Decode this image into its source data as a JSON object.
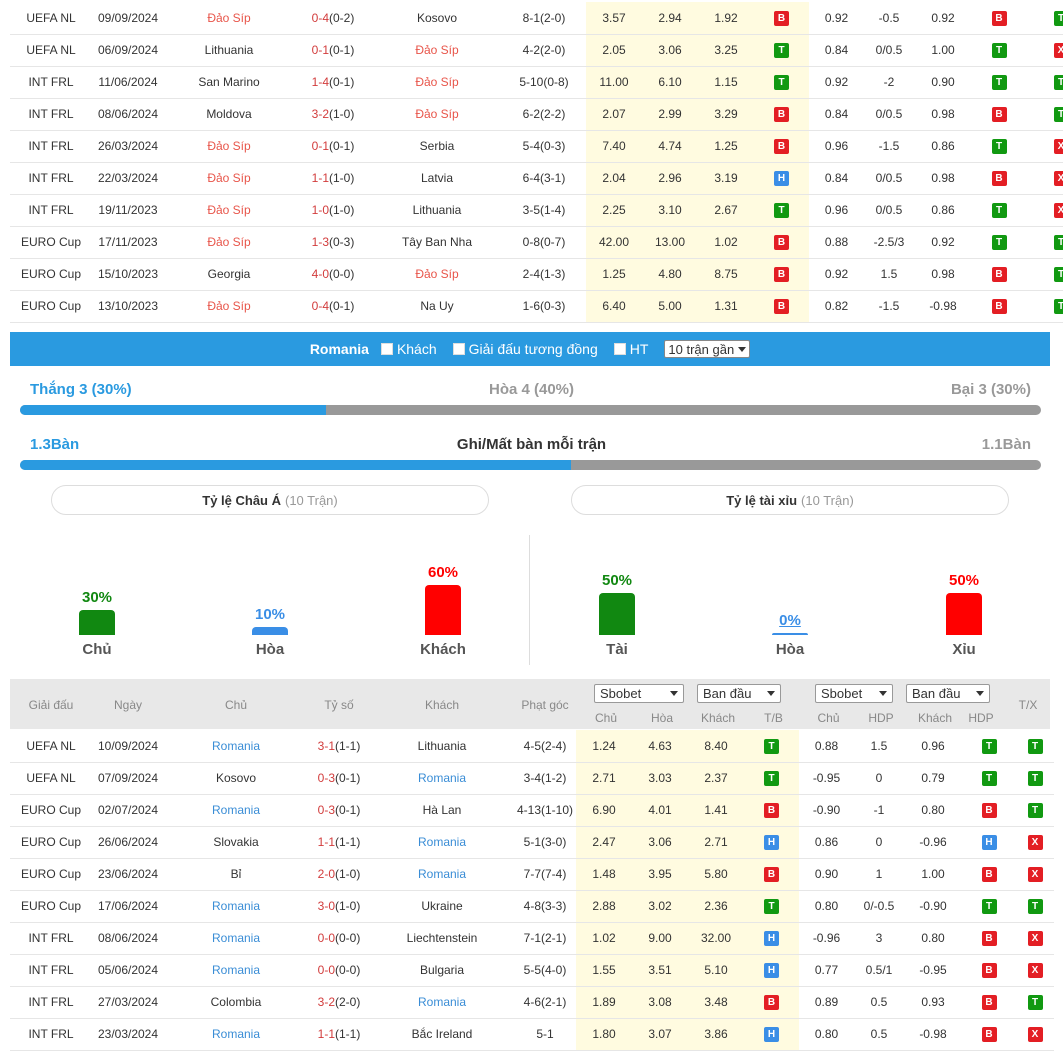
{
  "top_rows": [
    {
      "league": "UEFA NL",
      "date": "09/09/2024",
      "home": "Đảo Síp",
      "home_c": "red",
      "score": "0-4",
      "ht": "(0-2)",
      "away": "Kosovo",
      "away_c": "",
      "corner": "8-1(2-0)",
      "o1": "3.57",
      "o2": "2.94",
      "o3": "1.92",
      "tb": "B",
      "s1": "0.92",
      "s2": "-0.5",
      "s3": "0.92",
      "hdp": "B",
      "tx": "T"
    },
    {
      "league": "UEFA NL",
      "date": "06/09/2024",
      "home": "Lithuania",
      "home_c": "",
      "score": "0-1",
      "ht": "(0-1)",
      "away": "Đảo Síp",
      "away_c": "red",
      "corner": "4-2(2-0)",
      "o1": "2.05",
      "o2": "3.06",
      "o3": "3.25",
      "tb": "T",
      "s1": "0.84",
      "s2": "0/0.5",
      "s3": "1.00",
      "hdp": "T",
      "tx": "X"
    },
    {
      "league": "INT FRL",
      "date": "11/06/2024",
      "home": "San Marino",
      "home_c": "",
      "score": "1-4",
      "ht": "(0-1)",
      "away": "Đảo Síp",
      "away_c": "red",
      "corner": "5-10(0-8)",
      "o1": "11.00",
      "o2": "6.10",
      "o3": "1.15",
      "tb": "T",
      "s1": "0.92",
      "s2": "-2",
      "s3": "0.90",
      "hdp": "T",
      "tx": "T"
    },
    {
      "league": "INT FRL",
      "date": "08/06/2024",
      "home": "Moldova",
      "home_c": "",
      "score": "3-2",
      "ht": "(1-0)",
      "away": "Đảo Síp",
      "away_c": "red",
      "corner": "6-2(2-2)",
      "o1": "2.07",
      "o2": "2.99",
      "o3": "3.29",
      "tb": "B",
      "s1": "0.84",
      "s2": "0/0.5",
      "s3": "0.98",
      "hdp": "B",
      "tx": "T"
    },
    {
      "league": "INT FRL",
      "date": "26/03/2024",
      "home": "Đảo Síp",
      "home_c": "red",
      "score": "0-1",
      "ht": "(0-1)",
      "away": "Serbia",
      "away_c": "",
      "corner": "5-4(0-3)",
      "o1": "7.40",
      "o2": "4.74",
      "o3": "1.25",
      "tb": "B",
      "s1": "0.96",
      "s2": "-1.5",
      "s3": "0.86",
      "hdp": "T",
      "tx": "X"
    },
    {
      "league": "INT FRL",
      "date": "22/03/2024",
      "home": "Đảo Síp",
      "home_c": "red",
      "score": "1-1",
      "ht": "(1-0)",
      "away": "Latvia",
      "away_c": "",
      "corner": "6-4(3-1)",
      "o1": "2.04",
      "o2": "2.96",
      "o3": "3.19",
      "tb": "H",
      "s1": "0.84",
      "s2": "0/0.5",
      "s3": "0.98",
      "hdp": "B",
      "tx": "X"
    },
    {
      "league": "INT FRL",
      "date": "19/11/2023",
      "home": "Đảo Síp",
      "home_c": "red",
      "score": "1-0",
      "ht": "(1-0)",
      "away": "Lithuania",
      "away_c": "",
      "corner": "3-5(1-4)",
      "o1": "2.25",
      "o2": "3.10",
      "o3": "2.67",
      "tb": "T",
      "s1": "0.96",
      "s2": "0/0.5",
      "s3": "0.86",
      "hdp": "T",
      "tx": "X"
    },
    {
      "league": "EURO Cup",
      "date": "17/11/2023",
      "home": "Đảo Síp",
      "home_c": "red",
      "score": "1-3",
      "ht": "(0-3)",
      "away": "Tây Ban Nha",
      "away_c": "",
      "corner": "0-8(0-7)",
      "o1": "42.00",
      "o2": "13.00",
      "o3": "1.02",
      "tb": "B",
      "s1": "0.88",
      "s2": "-2.5/3",
      "s3": "0.92",
      "hdp": "T",
      "tx": "T"
    },
    {
      "league": "EURO Cup",
      "date": "15/10/2023",
      "home": "Georgia",
      "home_c": "",
      "score": "4-0",
      "ht": "(0-0)",
      "away": "Đảo Síp",
      "away_c": "red",
      "corner": "2-4(1-3)",
      "o1": "1.25",
      "o2": "4.80",
      "o3": "8.75",
      "tb": "B",
      "s1": "0.92",
      "s2": "1.5",
      "s3": "0.98",
      "hdp": "B",
      "tx": "T"
    },
    {
      "league": "EURO Cup",
      "date": "13/10/2023",
      "home": "Đảo Síp",
      "home_c": "red",
      "score": "0-4",
      "ht": "(0-1)",
      "away": "Na Uy",
      "away_c": "",
      "corner": "1-6(0-3)",
      "o1": "6.40",
      "o2": "5.00",
      "o3": "1.31",
      "tb": "B",
      "s1": "0.82",
      "s2": "-1.5",
      "s3": "-0.98",
      "hdp": "B",
      "tx": "T"
    }
  ],
  "filter": {
    "team": "Romania",
    "opt1": "Khách",
    "opt2": "Giải đấu tương đồng",
    "opt3": "HT",
    "select": "10 trận gần"
  },
  "summary": {
    "win": "Thắng 3 (30%)",
    "draw": "Hòa 4 (40%)",
    "loss": "Bại 3 (30%)",
    "win_frac": 0.3,
    "goals_left": "1.3Bàn",
    "goals_title": "Ghi/Mất bàn mỗi trận",
    "goals_right": "1.1Bàn",
    "goals_frac": 0.54
  },
  "asian": {
    "title": "Tỷ lệ Châu Á",
    "count": "(10 Trận)",
    "bars": [
      {
        "pct": "30%",
        "label": "Chủ",
        "value": 30,
        "color": "#118811"
      },
      {
        "pct": "10%",
        "label": "Hòa",
        "value": 10,
        "color": "#3a8ee6"
      },
      {
        "pct": "60%",
        "label": "Khách",
        "value": 60,
        "color": "#ff0000"
      }
    ]
  },
  "ou": {
    "title": "Tỷ lệ tài xỉu",
    "count": "(10 Trận)",
    "bars": [
      {
        "pct": "50%",
        "label": "Tài",
        "value": 50,
        "color": "#118811"
      },
      {
        "pct": "0%",
        "label": "Hòa",
        "value": 0,
        "color": "#3a8ee6"
      },
      {
        "pct": "50%",
        "label": "Xỉu",
        "value": 50,
        "color": "#ff0000"
      }
    ]
  },
  "header": {
    "league": "Giải đấu",
    "date": "Ngày",
    "home": "Chủ",
    "score": "Tỷ số",
    "away": "Khách",
    "corner": "Phạt góc",
    "sel1": "Sbobet",
    "sel2": "Ban đầu",
    "sel3": "Sbobet",
    "sel4": "Ban đầu",
    "c_chu": "Chủ",
    "c_hoa": "Hòa",
    "c_khach": "Khách",
    "c_tb": "T/B",
    "c_chu2": "Chủ",
    "c_hdp": "HDP",
    "c_khach2": "Khách",
    "c_hdp2": "HDP",
    "c_tx": "T/X"
  },
  "bottom_rows": [
    {
      "league": "UEFA NL",
      "date": "10/09/2024",
      "home": "Romania",
      "home_c": "blu",
      "score": "3-1",
      "ht": "(1-1)",
      "away": "Lithuania",
      "away_c": "",
      "corner": "4-5(2-4)",
      "o1": "1.24",
      "o2": "4.63",
      "o3": "8.40",
      "tb": "T",
      "s1": "0.88",
      "s2": "1.5",
      "s3": "0.96",
      "hdp": "T",
      "tx": "T"
    },
    {
      "league": "UEFA NL",
      "date": "07/09/2024",
      "home": "Kosovo",
      "home_c": "",
      "score": "0-3",
      "ht": "(0-1)",
      "away": "Romania",
      "away_c": "blu",
      "corner": "3-4(1-2)",
      "o1": "2.71",
      "o2": "3.03",
      "o3": "2.37",
      "tb": "T",
      "s1": "-0.95",
      "s2": "0",
      "s3": "0.79",
      "hdp": "T",
      "tx": "T"
    },
    {
      "league": "EURO Cup",
      "date": "02/07/2024",
      "home": "Romania",
      "home_c": "blu",
      "score": "0-3",
      "ht": "(0-1)",
      "away": "Hà Lan",
      "away_c": "",
      "corner": "4-13(1-10)",
      "o1": "6.90",
      "o2": "4.01",
      "o3": "1.41",
      "tb": "B",
      "s1": "-0.90",
      "s2": "-1",
      "s3": "0.80",
      "hdp": "B",
      "tx": "T"
    },
    {
      "league": "EURO Cup",
      "date": "26/06/2024",
      "home": "Slovakia",
      "home_c": "",
      "score": "1-1",
      "ht": "(1-1)",
      "away": "Romania",
      "away_c": "blu",
      "corner": "5-1(3-0)",
      "o1": "2.47",
      "o2": "3.06",
      "o3": "2.71",
      "tb": "H",
      "s1": "0.86",
      "s2": "0",
      "s3": "-0.96",
      "hdp": "H",
      "tx": "X"
    },
    {
      "league": "EURO Cup",
      "date": "23/06/2024",
      "home": "Bỉ",
      "home_c": "",
      "score": "2-0",
      "ht": "(1-0)",
      "away": "Romania",
      "away_c": "blu",
      "corner": "7-7(7-4)",
      "o1": "1.48",
      "o2": "3.95",
      "o3": "5.80",
      "tb": "B",
      "s1": "0.90",
      "s2": "1",
      "s3": "1.00",
      "hdp": "B",
      "tx": "X"
    },
    {
      "league": "EURO Cup",
      "date": "17/06/2024",
      "home": "Romania",
      "home_c": "blu",
      "score": "3-0",
      "ht": "(1-0)",
      "away": "Ukraine",
      "away_c": "",
      "corner": "4-8(3-3)",
      "o1": "2.88",
      "o2": "3.02",
      "o3": "2.36",
      "tb": "T",
      "s1": "0.80",
      "s2": "0/-0.5",
      "s3": "-0.90",
      "hdp": "T",
      "tx": "T"
    },
    {
      "league": "INT FRL",
      "date": "08/06/2024",
      "home": "Romania",
      "home_c": "blu",
      "score": "0-0",
      "ht": "(0-0)",
      "away": "Liechtenstein",
      "away_c": "",
      "corner": "7-1(2-1)",
      "o1": "1.02",
      "o2": "9.00",
      "o3": "32.00",
      "tb": "H",
      "s1": "-0.96",
      "s2": "3",
      "s3": "0.80",
      "hdp": "B",
      "tx": "X"
    },
    {
      "league": "INT FRL",
      "date": "05/06/2024",
      "home": "Romania",
      "home_c": "blu",
      "score": "0-0",
      "ht": "(0-0)",
      "away": "Bulgaria",
      "away_c": "",
      "corner": "5-5(4-0)",
      "o1": "1.55",
      "o2": "3.51",
      "o3": "5.10",
      "tb": "H",
      "s1": "0.77",
      "s2": "0.5/1",
      "s3": "-0.95",
      "hdp": "B",
      "tx": "X"
    },
    {
      "league": "INT FRL",
      "date": "27/03/2024",
      "home": "Colombia",
      "home_c": "",
      "score": "3-2",
      "ht": "(2-0)",
      "away": "Romania",
      "away_c": "blu",
      "corner": "4-6(2-1)",
      "o1": "1.89",
      "o2": "3.08",
      "o3": "3.48",
      "tb": "B",
      "s1": "0.89",
      "s2": "0.5",
      "s3": "0.93",
      "hdp": "B",
      "tx": "T"
    },
    {
      "league": "INT FRL",
      "date": "23/03/2024",
      "home": "Romania",
      "home_c": "blu",
      "score": "1-1",
      "ht": "(1-1)",
      "away": "Bắc Ireland",
      "away_c": "",
      "corner": "5-1",
      "o1": "1.80",
      "o2": "3.07",
      "o3": "3.86",
      "tb": "H",
      "s1": "0.80",
      "s2": "0.5",
      "s3": "-0.98",
      "hdp": "B",
      "tx": "X"
    }
  ]
}
